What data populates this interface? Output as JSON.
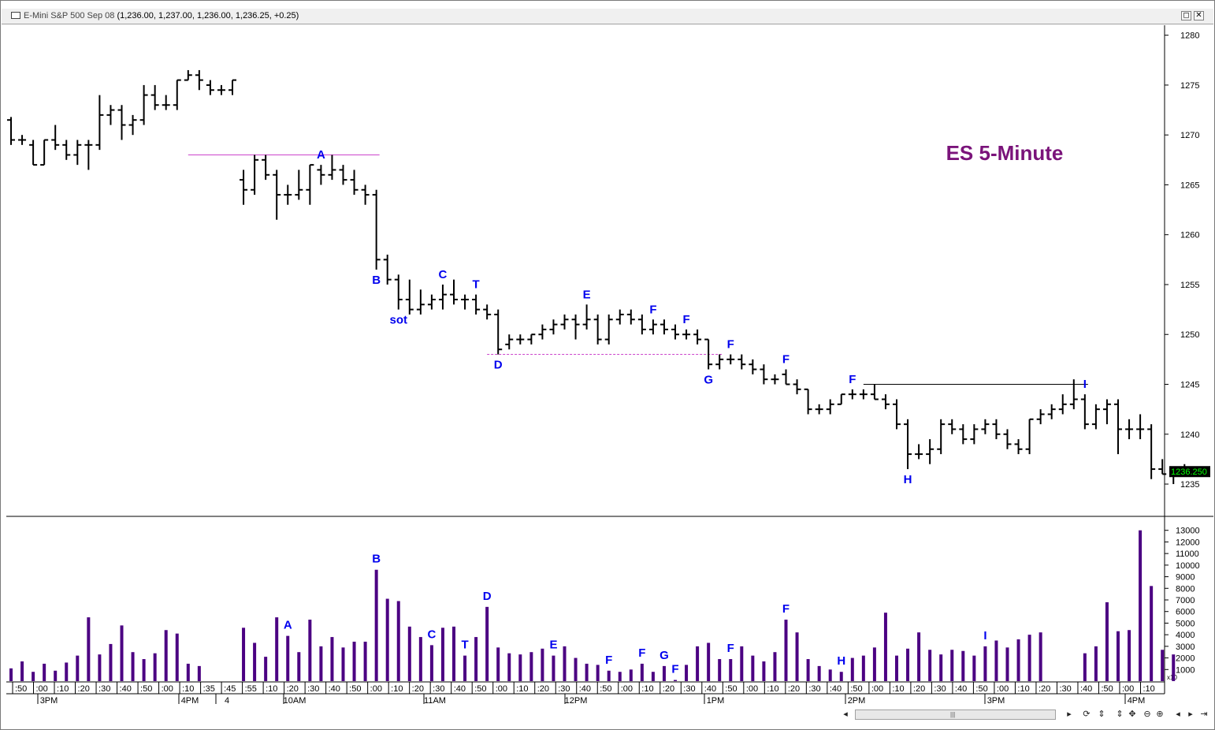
{
  "window": {
    "symbol": "E-Mini S&P 500 Sep 08",
    "quote": "(1,236.00, 1,237.00, 1,236.00, 1,236.25, +0.25)",
    "btn_restore": "◻",
    "btn_close": "✕"
  },
  "chart_data": {
    "type": "ohlc",
    "title": "ES 5-Minute",
    "price_axis": {
      "ylim": [
        1232,
        1281
      ],
      "ticks": [
        1280,
        1275,
        1270,
        1265,
        1260,
        1255,
        1250,
        1245,
        1240,
        1235
      ]
    },
    "volume_axis": {
      "ylim": [
        0,
        14000
      ],
      "ticks": [
        13000,
        12000,
        11000,
        10000,
        9000,
        8000,
        7000,
        6000,
        5000,
        4000,
        3000,
        2000,
        1000
      ],
      "multiplier_label": "x10"
    },
    "last_price_label": "1236.250",
    "colors": {
      "title": "#7a137a",
      "labels": "#0000ee",
      "volume": "#4b0082",
      "bars": "#000000",
      "last": "#00ff00",
      "hline_A": "#cc44cc",
      "hline_D": "#cc44cc",
      "hline_I": "#000000"
    },
    "time_ticks": [
      ":50",
      ":00",
      ":10",
      ":20",
      ":30",
      ":40",
      ":50",
      ":00",
      ":10",
      ":35",
      ":45",
      ":55",
      ":10",
      ":20",
      ":30",
      ":40",
      ":50",
      ":00",
      ":10",
      ":20",
      ":30",
      ":40",
      ":50",
      ":00",
      ":10",
      ":20",
      ":30",
      ":40",
      ":50",
      ":00",
      ":10",
      ":20",
      ":30",
      ":40",
      ":50",
      ":00",
      ":10",
      ":20",
      ":30",
      ":40",
      ":50",
      ":00",
      ":10",
      ":20",
      ":30",
      ":40",
      ":50",
      ":00",
      ":10",
      ":20",
      ":30",
      ":40",
      ":50",
      ":00",
      ":10"
    ],
    "time_major": [
      "3PM",
      "4PM",
      "4",
      "10AM",
      "11AM",
      "12PM",
      "1PM",
      "2PM",
      "3PM",
      "4PM"
    ],
    "bars": [
      {
        "o": 1271.5,
        "h": 1271.8,
        "l": 1269.0,
        "c": 1269.5,
        "v": 1100
      },
      {
        "o": 1269.5,
        "h": 1270.0,
        "l": 1269.0,
        "c": 1269.5,
        "v": 1700
      },
      {
        "o": 1269.0,
        "h": 1269.5,
        "l": 1267.0,
        "c": 1267.0,
        "v": 800
      },
      {
        "o": 1267.0,
        "h": 1269.5,
        "l": 1267.0,
        "c": 1269.5,
        "v": 1500
      },
      {
        "o": 1269.5,
        "h": 1271.0,
        "l": 1268.5,
        "c": 1269.0,
        "v": 900
      },
      {
        "o": 1269.0,
        "h": 1269.5,
        "l": 1267.5,
        "c": 1268.0,
        "v": 1600
      },
      {
        "o": 1268.0,
        "h": 1269.5,
        "l": 1267.0,
        "c": 1269.0,
        "v": 2200
      },
      {
        "o": 1269.0,
        "h": 1269.5,
        "l": 1266.5,
        "c": 1269.0,
        "v": 5500
      },
      {
        "o": 1269.0,
        "h": 1274.0,
        "l": 1268.5,
        "c": 1272.0,
        "v": 2300
      },
      {
        "o": 1272.0,
        "h": 1273.0,
        "l": 1271.0,
        "c": 1272.5,
        "v": 3200
      },
      {
        "o": 1272.5,
        "h": 1273.0,
        "l": 1269.5,
        "c": 1271.0,
        "v": 4800
      },
      {
        "o": 1271.0,
        "h": 1272.0,
        "l": 1270.0,
        "c": 1271.5,
        "v": 2500
      },
      {
        "o": 1271.5,
        "h": 1275.0,
        "l": 1271.0,
        "c": 1274.0,
        "v": 1900
      },
      {
        "o": 1274.0,
        "h": 1275.0,
        "l": 1272.5,
        "c": 1273.0,
        "v": 2400
      },
      {
        "o": 1273.0,
        "h": 1274.0,
        "l": 1272.5,
        "c": 1273.0,
        "v": 4400
      },
      {
        "o": 1273.0,
        "h": 1275.5,
        "l": 1272.5,
        "c": 1275.5,
        "v": 4100
      },
      {
        "o": 1275.5,
        "h": 1276.5,
        "l": 1275.5,
        "c": 1276.0,
        "v": 1500
      },
      {
        "o": 1276.0,
        "h": 1276.5,
        "l": 1274.5,
        "c": 1275.5,
        "v": 1300
      },
      {
        "o": 1275.0,
        "h": 1275.5,
        "l": 1274.0,
        "c": 1274.5,
        "v": 0
      },
      {
        "o": 1274.5,
        "h": 1275.0,
        "l": 1274.0,
        "c": 1274.5,
        "v": 0
      },
      {
        "o": 1274.5,
        "h": 1275.5,
        "l": 1274.0,
        "c": 1275.5,
        "v": 0
      },
      {
        "o": 1265.5,
        "h": 1266.5,
        "l": 1263.0,
        "c": 1264.5,
        "v": 4600
      },
      {
        "o": 1264.5,
        "h": 1268.0,
        "l": 1264.0,
        "c": 1267.5,
        "v": 3300
      },
      {
        "o": 1267.5,
        "h": 1268.0,
        "l": 1265.5,
        "c": 1266.0,
        "v": 2100
      },
      {
        "o": 1266.0,
        "h": 1266.5,
        "l": 1261.5,
        "c": 1264.0,
        "v": 5500
      },
      {
        "o": 1264.0,
        "h": 1265.0,
        "l": 1263.0,
        "c": 1264.0,
        "v": 3900
      },
      {
        "o": 1264.0,
        "h": 1266.5,
        "l": 1263.5,
        "c": 1264.5,
        "v": 2500
      },
      {
        "o": 1264.5,
        "h": 1267.0,
        "l": 1263.0,
        "c": 1267.0,
        "v": 5300
      },
      {
        "o": 1266.5,
        "h": 1267.0,
        "l": 1265.0,
        "c": 1266.0,
        "v": 3000
      },
      {
        "o": 1266.0,
        "h": 1268.0,
        "l": 1265.5,
        "c": 1266.5,
        "v": 3800
      },
      {
        "o": 1266.5,
        "h": 1267.0,
        "l": 1265.0,
        "c": 1265.5,
        "v": 2900
      },
      {
        "o": 1265.5,
        "h": 1266.5,
        "l": 1264.0,
        "c": 1264.5,
        "v": 3400
      },
      {
        "o": 1264.5,
        "h": 1265.0,
        "l": 1263.0,
        "c": 1264.0,
        "v": 3400
      },
      {
        "o": 1264.0,
        "h": 1264.5,
        "l": 1256.5,
        "c": 1257.5,
        "v": 9600
      },
      {
        "o": 1257.5,
        "h": 1258.0,
        "l": 1255.0,
        "c": 1255.5,
        "v": 7100
      },
      {
        "o": 1255.5,
        "h": 1256.0,
        "l": 1252.5,
        "c": 1253.5,
        "v": 6900
      },
      {
        "o": 1253.5,
        "h": 1255.5,
        "l": 1252.0,
        "c": 1252.5,
        "v": 4700
      },
      {
        "o": 1252.5,
        "h": 1254.5,
        "l": 1252.0,
        "c": 1253.0,
        "v": 3800
      },
      {
        "o": 1253.0,
        "h": 1254.0,
        "l": 1252.5,
        "c": 1253.5,
        "v": 3100
      },
      {
        "o": 1253.5,
        "h": 1255.0,
        "l": 1252.5,
        "c": 1254.0,
        "v": 4600
      },
      {
        "o": 1254.0,
        "h": 1255.5,
        "l": 1253.0,
        "c": 1253.5,
        "v": 4700
      },
      {
        "o": 1253.5,
        "h": 1254.0,
        "l": 1252.5,
        "c": 1253.5,
        "v": 2200
      },
      {
        "o": 1253.5,
        "h": 1254.0,
        "l": 1252.0,
        "c": 1252.5,
        "v": 3800
      },
      {
        "o": 1252.5,
        "h": 1253.0,
        "l": 1251.5,
        "c": 1252.0,
        "v": 6400
      },
      {
        "o": 1252.0,
        "h": 1252.5,
        "l": 1248.0,
        "c": 1248.5,
        "v": 2900
      },
      {
        "o": 1249.0,
        "h": 1250.0,
        "l": 1248.5,
        "c": 1249.5,
        "v": 2400
      },
      {
        "o": 1249.5,
        "h": 1250.0,
        "l": 1249.0,
        "c": 1249.5,
        "v": 2300
      },
      {
        "o": 1249.5,
        "h": 1250.0,
        "l": 1249.0,
        "c": 1250.0,
        "v": 2500
      },
      {
        "o": 1250.0,
        "h": 1251.0,
        "l": 1249.5,
        "c": 1250.5,
        "v": 2800
      },
      {
        "o": 1250.5,
        "h": 1251.5,
        "l": 1250.0,
        "c": 1251.0,
        "v": 2200
      },
      {
        "o": 1251.0,
        "h": 1252.0,
        "l": 1250.5,
        "c": 1251.5,
        "v": 3000
      },
      {
        "o": 1251.5,
        "h": 1252.0,
        "l": 1249.5,
        "c": 1251.0,
        "v": 2000
      },
      {
        "o": 1251.0,
        "h": 1253.0,
        "l": 1250.5,
        "c": 1251.5,
        "v": 1500
      },
      {
        "o": 1251.5,
        "h": 1252.0,
        "l": 1249.0,
        "c": 1249.5,
        "v": 1400
      },
      {
        "o": 1249.5,
        "h": 1252.0,
        "l": 1249.0,
        "c": 1251.5,
        "v": 900
      },
      {
        "o": 1251.5,
        "h": 1252.5,
        "l": 1251.0,
        "c": 1252.0,
        "v": 800
      },
      {
        "o": 1252.0,
        "h": 1252.5,
        "l": 1251.0,
        "c": 1251.5,
        "v": 1000
      },
      {
        "o": 1251.5,
        "h": 1252.0,
        "l": 1250.0,
        "c": 1250.5,
        "v": 1500
      },
      {
        "o": 1250.5,
        "h": 1251.5,
        "l": 1250.0,
        "c": 1251.0,
        "v": 800
      },
      {
        "o": 1251.0,
        "h": 1251.5,
        "l": 1250.0,
        "c": 1250.5,
        "v": 1300
      },
      {
        "o": 1250.5,
        "h": 1251.0,
        "l": 1249.5,
        "c": 1250.0,
        "v": 100
      },
      {
        "o": 1250.0,
        "h": 1250.5,
        "l": 1249.5,
        "c": 1250.0,
        "v": 1400
      },
      {
        "o": 1250.0,
        "h": 1250.5,
        "l": 1249.0,
        "c": 1249.5,
        "v": 3000
      },
      {
        "o": 1249.5,
        "h": 1249.5,
        "l": 1246.5,
        "c": 1247.0,
        "v": 3300
      },
      {
        "o": 1247.0,
        "h": 1248.0,
        "l": 1246.5,
        "c": 1247.5,
        "v": 1900
      },
      {
        "o": 1247.5,
        "h": 1248.0,
        "l": 1247.0,
        "c": 1247.5,
        "v": 1900
      },
      {
        "o": 1247.5,
        "h": 1248.0,
        "l": 1246.5,
        "c": 1247.0,
        "v": 3000
      },
      {
        "o": 1247.0,
        "h": 1247.5,
        "l": 1246.0,
        "c": 1246.5,
        "v": 2200
      },
      {
        "o": 1246.5,
        "h": 1247.0,
        "l": 1245.0,
        "c": 1245.5,
        "v": 1700
      },
      {
        "o": 1245.5,
        "h": 1246.0,
        "l": 1245.0,
        "c": 1245.5,
        "v": 2500
      },
      {
        "o": 1246.0,
        "h": 1246.5,
        "l": 1245.0,
        "c": 1245.0,
        "v": 5300
      },
      {
        "o": 1245.0,
        "h": 1245.5,
        "l": 1244.0,
        "c": 1244.5,
        "v": 4200
      },
      {
        "o": 1244.5,
        "h": 1244.5,
        "l": 1242.0,
        "c": 1242.5,
        "v": 1900
      },
      {
        "o": 1242.5,
        "h": 1243.0,
        "l": 1242.0,
        "c": 1242.5,
        "v": 1300
      },
      {
        "o": 1242.5,
        "h": 1243.5,
        "l": 1242.0,
        "c": 1243.0,
        "v": 1000
      },
      {
        "o": 1243.0,
        "h": 1244.0,
        "l": 1243.0,
        "c": 1244.0,
        "v": 800
      },
      {
        "o": 1244.0,
        "h": 1244.5,
        "l": 1243.5,
        "c": 1244.0,
        "v": 2000
      },
      {
        "o": 1244.0,
        "h": 1244.5,
        "l": 1243.5,
        "c": 1244.0,
        "v": 2200
      },
      {
        "o": 1244.0,
        "h": 1245.0,
        "l": 1243.5,
        "c": 1243.5,
        "v": 2900
      },
      {
        "o": 1243.5,
        "h": 1244.0,
        "l": 1242.5,
        "c": 1243.0,
        "v": 5900
      },
      {
        "o": 1243.0,
        "h": 1243.5,
        "l": 1240.5,
        "c": 1241.0,
        "v": 2200
      },
      {
        "o": 1241.0,
        "h": 1241.5,
        "l": 1236.5,
        "c": 1238.0,
        "v": 2800
      },
      {
        "o": 1238.0,
        "h": 1239.0,
        "l": 1237.5,
        "c": 1238.0,
        "v": 4200
      },
      {
        "o": 1238.0,
        "h": 1239.5,
        "l": 1237.0,
        "c": 1238.5,
        "v": 2700
      },
      {
        "o": 1238.5,
        "h": 1241.5,
        "l": 1238.0,
        "c": 1241.0,
        "v": 2300
      },
      {
        "o": 1241.0,
        "h": 1241.5,
        "l": 1240.0,
        "c": 1240.5,
        "v": 2700
      },
      {
        "o": 1240.5,
        "h": 1241.0,
        "l": 1239.0,
        "c": 1239.5,
        "v": 2600
      },
      {
        "o": 1239.5,
        "h": 1241.0,
        "l": 1239.0,
        "c": 1240.5,
        "v": 2200
      },
      {
        "o": 1240.5,
        "h": 1241.5,
        "l": 1240.0,
        "c": 1241.0,
        "v": 3000
      },
      {
        "o": 1241.0,
        "h": 1241.5,
        "l": 1239.5,
        "c": 1240.0,
        "v": 3500
      },
      {
        "o": 1240.0,
        "h": 1240.5,
        "l": 1238.5,
        "c": 1239.0,
        "v": 2900
      },
      {
        "o": 1239.0,
        "h": 1239.5,
        "l": 1238.0,
        "c": 1238.5,
        "v": 3600
      },
      {
        "o": 1238.5,
        "h": 1241.5,
        "l": 1238.0,
        "c": 1241.5,
        "v": 4000
      },
      {
        "o": 1241.5,
        "h": 1242.5,
        "l": 1241.0,
        "c": 1242.0,
        "v": 4200
      },
      {
        "o": 1242.0,
        "h": 1243.0,
        "l": 1241.5,
        "c": 1242.5,
        "v": 0
      },
      {
        "o": 1242.5,
        "h": 1244.0,
        "l": 1242.0,
        "c": 1243.0,
        "v": 0
      },
      {
        "o": 1243.0,
        "h": 1245.5,
        "l": 1242.5,
        "c": 1243.5,
        "v": 0
      },
      {
        "o": 1243.5,
        "h": 1244.0,
        "l": 1240.5,
        "c": 1241.0,
        "v": 2400
      },
      {
        "o": 1241.0,
        "h": 1243.0,
        "l": 1240.5,
        "c": 1242.5,
        "v": 3000
      },
      {
        "o": 1242.5,
        "h": 1243.5,
        "l": 1241.0,
        "c": 1243.0,
        "v": 6800
      },
      {
        "o": 1243.0,
        "h": 1243.5,
        "l": 1238.0,
        "c": 1240.5,
        "v": 4300
      },
      {
        "o": 1240.5,
        "h": 1241.5,
        "l": 1239.5,
        "c": 1240.5,
        "v": 4400
      },
      {
        "o": 1240.5,
        "h": 1242.0,
        "l": 1239.5,
        "c": 1240.5,
        "v": 13000
      },
      {
        "o": 1240.5,
        "h": 1241.0,
        "l": 1235.5,
        "c": 1236.5,
        "v": 8200
      },
      {
        "o": 1236.5,
        "h": 1237.5,
        "l": 1236.0,
        "c": 1236.0,
        "v": 2700
      },
      {
        "o": 1236.0,
        "h": 1236.5,
        "l": 1235.0,
        "c": 1236.0,
        "v": 2300
      },
      {
        "o": 1236.0,
        "h": 1237.0,
        "l": 1236.0,
        "c": 1236.25,
        "v": 0
      }
    ],
    "price_labels": [
      {
        "text": "A",
        "bar": 28,
        "price": 1268.5,
        "pos": "above"
      },
      {
        "text": "B",
        "bar": 33,
        "price": 1256.5,
        "pos": "below"
      },
      {
        "text": "sot",
        "bar": 35,
        "price": 1252.5,
        "pos": "below"
      },
      {
        "text": "C",
        "bar": 39,
        "price": 1255.0,
        "pos": "above"
      },
      {
        "text": "T",
        "bar": 42,
        "price": 1254.0,
        "pos": "above"
      },
      {
        "text": "D",
        "bar": 44,
        "price": 1248.0,
        "pos": "below"
      },
      {
        "text": "E",
        "bar": 52,
        "price": 1253.0,
        "pos": "above"
      },
      {
        "text": "F",
        "bar": 58,
        "price": 1252.5,
        "pos": "above"
      },
      {
        "text": "F",
        "bar": 61,
        "price": 1251.5,
        "pos": "above"
      },
      {
        "text": "G",
        "bar": 63,
        "price": 1246.5,
        "pos": "below"
      },
      {
        "text": "F",
        "bar": 65,
        "price": 1248.0,
        "pos": "above"
      },
      {
        "text": "F",
        "bar": 70,
        "price": 1246.5,
        "pos": "above"
      },
      {
        "text": "F",
        "bar": 76,
        "price": 1244.5,
        "pos": "above"
      },
      {
        "text": "H",
        "bar": 81,
        "price": 1236.5,
        "pos": "below"
      },
      {
        "text": "I",
        "bar": 97,
        "price": 1245.5,
        "pos": "above"
      }
    ],
    "volume_labels": [
      {
        "text": "A",
        "bar": 25
      },
      {
        "text": "B",
        "bar": 33
      },
      {
        "text": "C",
        "bar": 38
      },
      {
        "text": "T",
        "bar": 41
      },
      {
        "text": "D",
        "bar": 43
      },
      {
        "text": "E",
        "bar": 49
      },
      {
        "text": "F",
        "bar": 54
      },
      {
        "text": "F",
        "bar": 57
      },
      {
        "text": "G",
        "bar": 59
      },
      {
        "text": "F",
        "bar": 60
      },
      {
        "text": "F",
        "bar": 65
      },
      {
        "text": "F",
        "bar": 70
      },
      {
        "text": "H",
        "bar": 75
      },
      {
        "text": "I",
        "bar": 88
      }
    ],
    "hlines": [
      {
        "price": 1268.0,
        "from_bar": 16,
        "to_bar": 33,
        "color": "#cc44cc",
        "dash": false
      },
      {
        "price": 1248.0,
        "from_bar": 43,
        "to_bar": 64,
        "color": "#cc44cc",
        "dash": true
      },
      {
        "price": 1245.0,
        "from_bar": 77,
        "to_bar": 97,
        "color": "#000000",
        "dash": false
      }
    ]
  },
  "toolbar": {
    "grip": "|||"
  }
}
